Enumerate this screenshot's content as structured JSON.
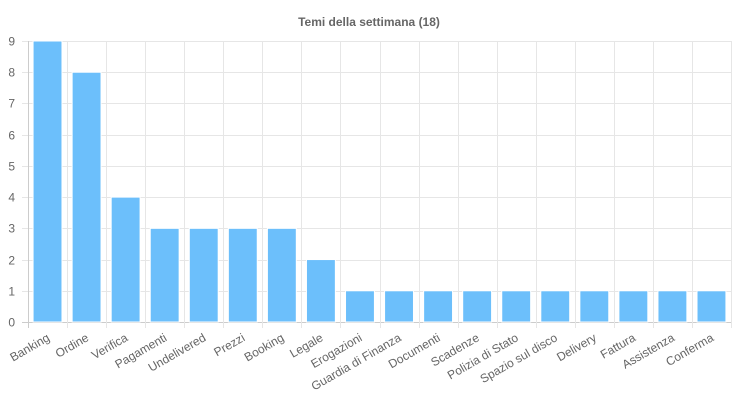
{
  "chart_data": {
    "type": "bar",
    "title": "Temi della settimana (18)",
    "xlabel": "",
    "ylabel": "",
    "categories": [
      "Banking",
      "Ordine",
      "Verifica",
      "Pagamenti",
      "Undelivered",
      "Prezzi",
      "Booking",
      "Legale",
      "Erogazioni",
      "Guardia di Finanza",
      "Documenti",
      "Scadenze",
      "Polizia di Stato",
      "Spazio sul disco",
      "Delivery",
      "Fattura",
      "Assistenza",
      "Conferma"
    ],
    "values": [
      9,
      8,
      4,
      3,
      3,
      3,
      3,
      2,
      1,
      1,
      1,
      1,
      1,
      1,
      1,
      1,
      1,
      1
    ],
    "ylim": [
      0,
      9
    ],
    "yticks": [
      0,
      1,
      2,
      3,
      4,
      5,
      6,
      7,
      8,
      9
    ],
    "grid": true,
    "legend": "none",
    "bar_color": "#6cbffb",
    "bar_border_color": "#ffffff"
  }
}
